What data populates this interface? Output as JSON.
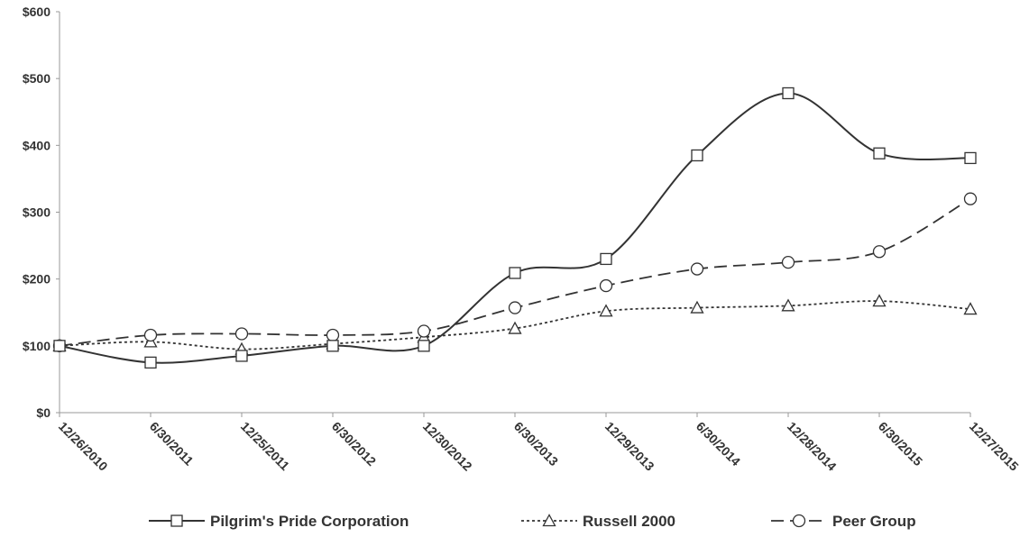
{
  "chart_data": {
    "type": "line",
    "title": "",
    "xlabel": "",
    "ylabel": "",
    "categories": [
      "12/26/2010",
      "6/30/2011",
      "12/25/2011",
      "6/30/2012",
      "12/30/2012",
      "6/30/2013",
      "12/29/2013",
      "6/30/2014",
      "12/28/2014",
      "6/30/2015",
      "12/27/2015"
    ],
    "ylim": [
      0,
      600
    ],
    "yticks": [
      0,
      100,
      200,
      300,
      400,
      500,
      600
    ],
    "ytick_labels": [
      "$0",
      "$100",
      "$200",
      "$300",
      "$400",
      "$500",
      "$600"
    ],
    "grid": false,
    "legend_position": "bottom",
    "series": [
      {
        "name": "Pilgrim's Pride Corporation",
        "values": [
          100,
          75,
          85,
          100,
          100,
          209,
          230,
          385,
          478,
          388,
          381
        ],
        "color": "#333333",
        "line_style": "solid",
        "marker": "square"
      },
      {
        "name": "Russell 2000",
        "values": [
          100,
          106,
          95,
          103,
          113,
          126,
          152,
          157,
          160,
          167,
          155
        ],
        "color": "#333333",
        "line_style": "dotted",
        "marker": "triangle"
      },
      {
        "name": "Peer Group",
        "values": [
          100,
          116,
          118,
          116,
          122,
          157,
          190,
          215,
          225,
          241,
          320
        ],
        "color": "#333333",
        "line_style": "dashed",
        "marker": "circle"
      }
    ]
  }
}
